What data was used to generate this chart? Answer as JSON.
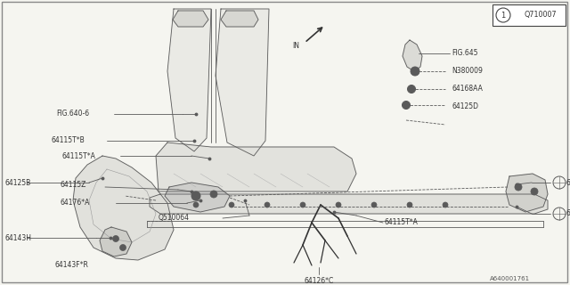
{
  "bg_color": "#f5f5f0",
  "line_color": "#5a5a5a",
  "fig_width": 6.4,
  "fig_height": 3.2,
  "dpi": 100,
  "diagram_id": "Q710007",
  "diagram_num": "1",
  "bottom_ref": "A640001761"
}
